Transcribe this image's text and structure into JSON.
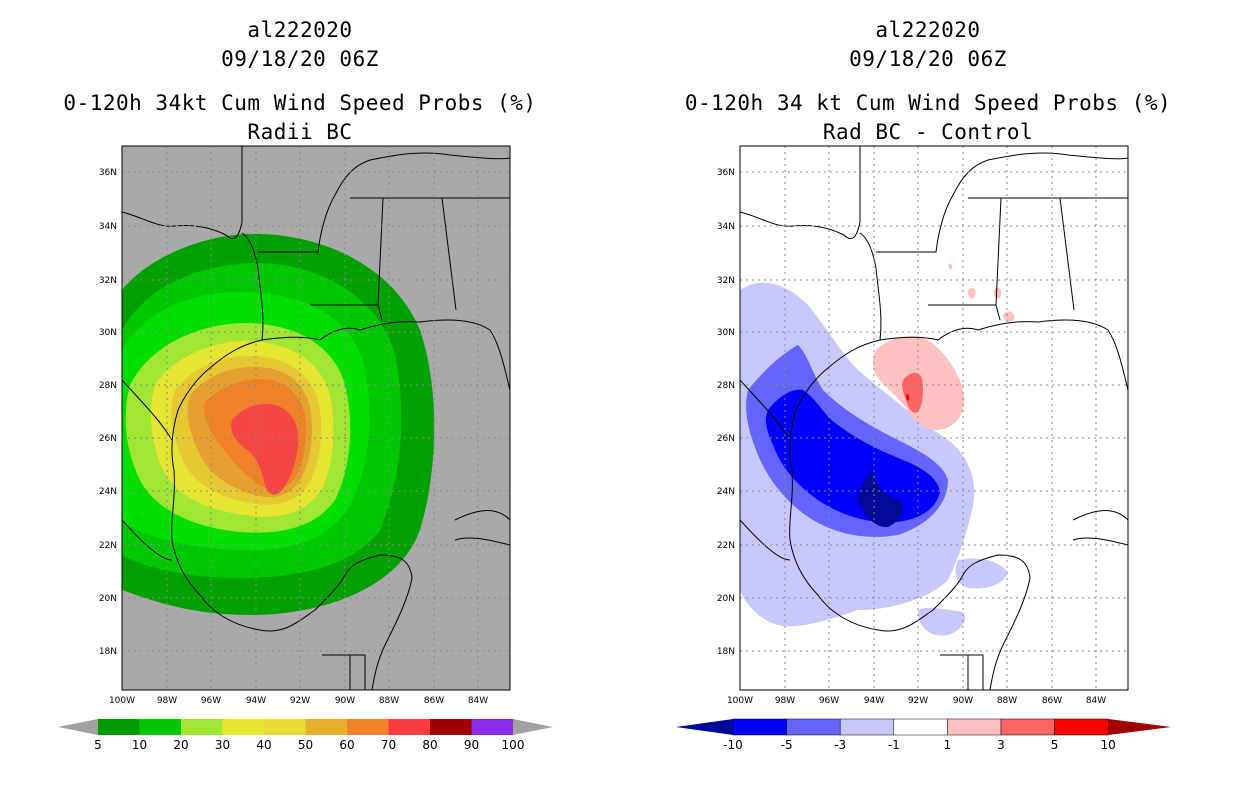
{
  "left": {
    "storm_id": "al222020",
    "datetime": "09/18/20 06Z",
    "title": "0-120h 34kt Cum Wind Speed Probs (%)",
    "subtitle": "Radii BC",
    "colorbar": {
      "labels": [
        "5",
        "10",
        "20",
        "30",
        "40",
        "50",
        "60",
        "70",
        "80",
        "90",
        "100"
      ],
      "colors": [
        "#009a00",
        "#00c800",
        "#00e600",
        "#a0e632",
        "#e6e632",
        "#e6dc32",
        "#e6af2d",
        "#f08228",
        "#fa3c3c",
        "#a00000",
        "#8c2ce6"
      ]
    }
  },
  "right": {
    "storm_id": "al222020",
    "datetime": "09/18/20 06Z",
    "title": "0-120h 34 kt Cum Wind Speed Probs (%)",
    "subtitle": "Rad BC - Control",
    "colorbar": {
      "labels": [
        "-10",
        "-5",
        "-3",
        "-1",
        "1",
        "3",
        "5",
        "10"
      ],
      "colors": [
        "#000a96",
        "#0000ff",
        "#6464ff",
        "#c8c8ff",
        "#ffffff",
        "#ffc0c0",
        "#ff6464",
        "#ff0000",
        "#a00000"
      ]
    }
  },
  "axes": {
    "lat_labels": [
      "36N",
      "34N",
      "32N",
      "30N",
      "28N",
      "26N",
      "24N",
      "22N",
      "20N",
      "18N"
    ],
    "lon_labels": [
      "100W",
      "98W",
      "96W",
      "94W",
      "92W",
      "90W",
      "88W",
      "86W",
      "84W"
    ]
  }
}
